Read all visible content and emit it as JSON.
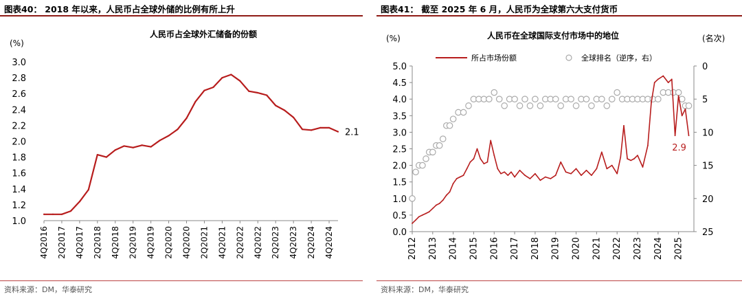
{
  "colors": {
    "line": "#b71c1c",
    "marker": "#aaaaaa",
    "rule": "#8e1a14"
  },
  "panels": [
    {
      "figure_title": "图表40： 2018 年以来，人民币占全球外储的比例有所上升",
      "source": "资料来源：DM，华泰研究"
    },
    {
      "figure_title": "图表41： 截至 2025 年 6 月，人民币为全球第六大支付货币",
      "source": "资料来源：DM，华泰研究"
    }
  ],
  "chart_data": [
    {
      "type": "line",
      "title": "人民币占全球外汇储备的份额",
      "ylabel": "(%)",
      "ylim": [
        1.0,
        3.0
      ],
      "yticks": [
        "1.0",
        "1.2",
        "1.4",
        "1.6",
        "1.8",
        "2.0",
        "2.2",
        "2.4",
        "2.6",
        "2.8",
        "3.0"
      ],
      "xtick_labels": [
        "4Q2016",
        "2Q2017",
        "4Q2017",
        "2Q2018",
        "4Q2018",
        "2Q2019",
        "4Q2019",
        "2Q2020",
        "4Q2020",
        "2Q2021",
        "4Q2021",
        "2Q2022",
        "4Q2022",
        "2Q2023",
        "4Q2023",
        "2Q2024",
        "4Q2024"
      ],
      "x": [
        "4Q2016",
        "1Q2017",
        "2Q2017",
        "3Q2017",
        "4Q2017",
        "1Q2018",
        "2Q2018",
        "3Q2018",
        "4Q2018",
        "1Q2019",
        "2Q2019",
        "3Q2019",
        "4Q2019",
        "1Q2020",
        "2Q2020",
        "3Q2020",
        "4Q2020",
        "1Q2021",
        "2Q2021",
        "3Q2021",
        "4Q2021",
        "1Q2022",
        "2Q2022",
        "3Q2022",
        "4Q2022",
        "1Q2023",
        "2Q2023",
        "3Q2023",
        "4Q2023",
        "1Q2024",
        "2Q2024",
        "3Q2024",
        "4Q2024",
        "1Q2025"
      ],
      "values": [
        1.08,
        1.08,
        1.08,
        1.12,
        1.24,
        1.39,
        1.83,
        1.8,
        1.89,
        1.94,
        1.92,
        1.95,
        1.93,
        2.01,
        2.07,
        2.15,
        2.29,
        2.5,
        2.64,
        2.68,
        2.8,
        2.84,
        2.76,
        2.63,
        2.61,
        2.58,
        2.45,
        2.39,
        2.3,
        2.15,
        2.14,
        2.17,
        2.17,
        2.12
      ],
      "end_label": "2.1",
      "grid": false,
      "legend": "none"
    },
    {
      "type": "line",
      "title": "人民币在全球国际支付市场中的地位",
      "ylabel_left": "(%)",
      "ylabel_right": "(名次)",
      "ylim_left": [
        0.0,
        5.0
      ],
      "ylim_right_inverted": [
        0,
        25
      ],
      "yticks_left": [
        "0.0",
        "0.5",
        "1.0",
        "1.5",
        "2.0",
        "2.5",
        "3.0",
        "3.5",
        "4.0",
        "4.5",
        "5.0"
      ],
      "yticks_right": [
        "0",
        "5",
        "10",
        "15",
        "20",
        "25"
      ],
      "xtick_labels": [
        "2012",
        "2013",
        "2014",
        "2015",
        "2016",
        "2017",
        "2018",
        "2019",
        "2020",
        "2021",
        "2022",
        "2023",
        "2024",
        "2025"
      ],
      "legend_position": "top",
      "series": [
        {
          "name": "所占市场份额",
          "axis": "left",
          "x": [
            2012.0,
            2012.17,
            2012.33,
            2012.5,
            2012.67,
            2012.83,
            2013.0,
            2013.17,
            2013.33,
            2013.5,
            2013.67,
            2013.83,
            2014.0,
            2014.17,
            2014.33,
            2014.5,
            2014.67,
            2014.83,
            2015.0,
            2015.17,
            2015.33,
            2015.5,
            2015.67,
            2015.83,
            2016.0,
            2016.17,
            2016.33,
            2016.5,
            2016.67,
            2016.83,
            2017.0,
            2017.25,
            2017.5,
            2017.75,
            2018.0,
            2018.25,
            2018.5,
            2018.75,
            2019.0,
            2019.25,
            2019.5,
            2019.75,
            2020.0,
            2020.25,
            2020.5,
            2020.75,
            2021.0,
            2021.25,
            2021.5,
            2021.75,
            2022.0,
            2022.17,
            2022.33,
            2022.5,
            2022.67,
            2022.83,
            2023.0,
            2023.25,
            2023.5,
            2023.67,
            2023.83,
            2024.0,
            2024.25,
            2024.5,
            2024.67,
            2024.83,
            2025.0,
            2025.17,
            2025.33,
            2025.5
          ],
          "values": [
            0.25,
            0.35,
            0.45,
            0.5,
            0.55,
            0.6,
            0.7,
            0.8,
            0.85,
            0.95,
            1.1,
            1.2,
            1.45,
            1.6,
            1.65,
            1.7,
            1.9,
            2.1,
            2.2,
            2.5,
            2.2,
            2.05,
            2.1,
            2.75,
            2.3,
            1.9,
            1.75,
            1.8,
            1.7,
            1.8,
            1.65,
            1.85,
            1.7,
            1.6,
            1.75,
            1.55,
            1.65,
            1.6,
            1.7,
            2.1,
            1.8,
            1.75,
            1.9,
            1.7,
            1.85,
            1.7,
            1.9,
            2.4,
            1.9,
            2.0,
            1.75,
            2.25,
            3.2,
            2.2,
            2.15,
            2.2,
            2.3,
            1.95,
            2.6,
            3.9,
            4.5,
            4.6,
            4.7,
            4.5,
            4.6,
            2.9,
            4.1,
            3.5,
            3.7,
            2.9
          ]
        },
        {
          "name": "全球排名（逆序，右）",
          "axis": "right",
          "x": [
            2012.0,
            2012.17,
            2012.33,
            2012.5,
            2012.67,
            2012.83,
            2013.0,
            2013.17,
            2013.33,
            2013.5,
            2013.67,
            2013.83,
            2014.0,
            2014.25,
            2014.5,
            2014.75,
            2015.0,
            2015.25,
            2015.5,
            2015.75,
            2016.0,
            2016.25,
            2016.5,
            2016.75,
            2017.0,
            2017.25,
            2017.5,
            2017.75,
            2018.0,
            2018.25,
            2018.5,
            2018.75,
            2019.0,
            2019.25,
            2019.5,
            2019.75,
            2020.0,
            2020.25,
            2020.5,
            2020.75,
            2021.0,
            2021.25,
            2021.5,
            2021.75,
            2022.0,
            2022.25,
            2022.5,
            2022.75,
            2023.0,
            2023.25,
            2023.5,
            2023.75,
            2024.0,
            2024.25,
            2024.5,
            2024.75,
            2025.0,
            2025.17,
            2025.33,
            2025.5
          ],
          "values": [
            20,
            16,
            15,
            15,
            14,
            13,
            13,
            12,
            12,
            11,
            9,
            9,
            8,
            7,
            7,
            6,
            5,
            5,
            5,
            5,
            4,
            5,
            6,
            5,
            5,
            6,
            5,
            6,
            5,
            6,
            5,
            5,
            5,
            6,
            5,
            5,
            6,
            5,
            5,
            6,
            5,
            5,
            6,
            5,
            4,
            5,
            5,
            5,
            5,
            5,
            5,
            5,
            5,
            4,
            4,
            4,
            4,
            5,
            6,
            6
          ]
        }
      ],
      "end_label": "2.9",
      "grid": false
    }
  ]
}
